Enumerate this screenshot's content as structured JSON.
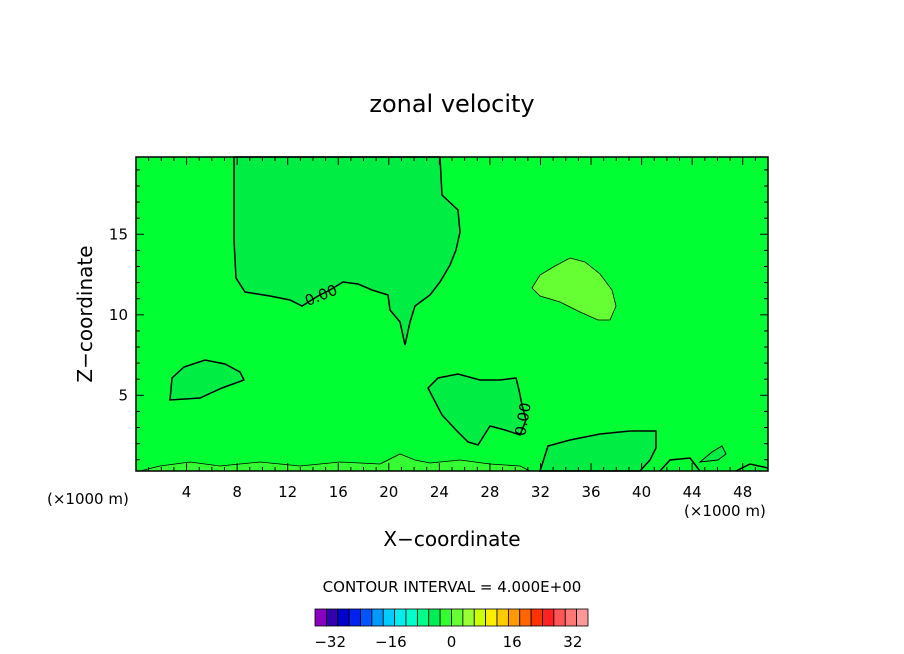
{
  "chart_data": {
    "type": "heatmap",
    "title": "zonal velocity",
    "xlabel": "X−coordinate",
    "ylabel": "Z−coordinate",
    "x_units_left": "(×1000 m)",
    "x_units_right": "(×1000 m)",
    "xlim": [
      0,
      50
    ],
    "ylim": [
      0.3,
      19.8
    ],
    "x_ticks": [
      4,
      8,
      12,
      16,
      20,
      24,
      28,
      32,
      36,
      40,
      44,
      48
    ],
    "y_ticks": [
      5,
      10,
      15
    ],
    "contour_labels": [
      "0.00",
      "0.00"
    ],
    "contour_interval_text": "CONTOUR INTERVAL = 4.000E+00",
    "background_color": "#00ff33",
    "colorbar": {
      "levels": [
        -34,
        -32,
        -30,
        -28,
        -26,
        -24,
        -22,
        -20,
        -18,
        -16,
        -14,
        -12,
        -10,
        -8,
        -6,
        -4,
        -2,
        0,
        2,
        4,
        6,
        8,
        10,
        12,
        14,
        16,
        18,
        20,
        22,
        24,
        26,
        28,
        30,
        32,
        34
      ],
      "tick_labels": [
        "−32",
        "−16",
        "0",
        "16",
        "32"
      ],
      "tick_values": [
        -32,
        -16,
        0,
        16,
        32
      ],
      "colors": [
        "#8a00c0",
        "#3300b0",
        "#0000cc",
        "#0022ee",
        "#0055ff",
        "#0099ff",
        "#00ccff",
        "#00eeee",
        "#00ffcc",
        "#00ff88",
        "#00ee55",
        "#33ff33",
        "#66ff33",
        "#99ff33",
        "#ccff00",
        "#ffee00",
        "#ffcc00",
        "#ff9900",
        "#ff6600",
        "#ff3300",
        "#ff2222",
        "#ff5555",
        "#ff7777",
        "#ff9999"
      ],
      "colors_shown": [
        "#8a00c0",
        "#3300b0",
        "#0000cc",
        "#0022ee",
        "#0055ff",
        "#0099ff",
        "#00ccff",
        "#00eeee",
        "#00ffcc",
        "#00ff88",
        "#00ee55",
        "#33ff33",
        "#66ff33",
        "#99ff33",
        "#ccff00",
        "#ffee00",
        "#ffcc00",
        "#ff9900",
        "#ff6600",
        "#ff3300",
        "#ff2222",
        "#ff5555",
        "#ff7777",
        "#ff9999"
      ]
    }
  }
}
